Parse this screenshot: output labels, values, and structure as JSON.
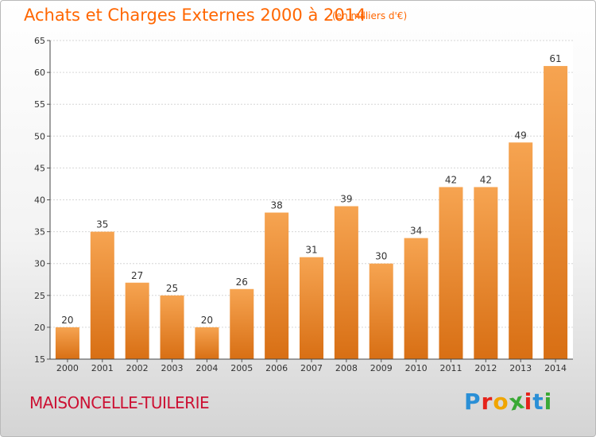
{
  "header": {
    "title": "Achats et Charges Externes 2000 à 2014",
    "subtitle": "(en milliers d'€)"
  },
  "footer": {
    "commune": "MAISONCELLE-TUILERIE",
    "logo_letters": [
      "P",
      "r",
      "o",
      "x",
      "i",
      "t",
      "i"
    ],
    "logo_colors": [
      "#2a8fd6",
      "#e5231b",
      "#f0a500",
      "#3aa935",
      "#e5231b",
      "#2a8fd6",
      "#3aa935"
    ]
  },
  "chart_data": {
    "type": "bar",
    "title": "Achats et Charges Externes 2000 à 2014",
    "subtitle": "(en milliers d'€)",
    "categories": [
      "2000",
      "2001",
      "2002",
      "2003",
      "2004",
      "2005",
      "2006",
      "2007",
      "2008",
      "2009",
      "2010",
      "2011",
      "2012",
      "2013",
      "2014"
    ],
    "values": [
      20,
      35,
      27,
      25,
      20,
      26,
      38,
      31,
      39,
      30,
      34,
      42,
      42,
      49,
      61
    ],
    "ylim": [
      15,
      65
    ],
    "yticks": [
      15,
      20,
      25,
      30,
      35,
      40,
      45,
      50,
      55,
      60,
      65
    ],
    "grid": true,
    "bar_color": "#e8832a",
    "xlabel": "",
    "ylabel": ""
  }
}
